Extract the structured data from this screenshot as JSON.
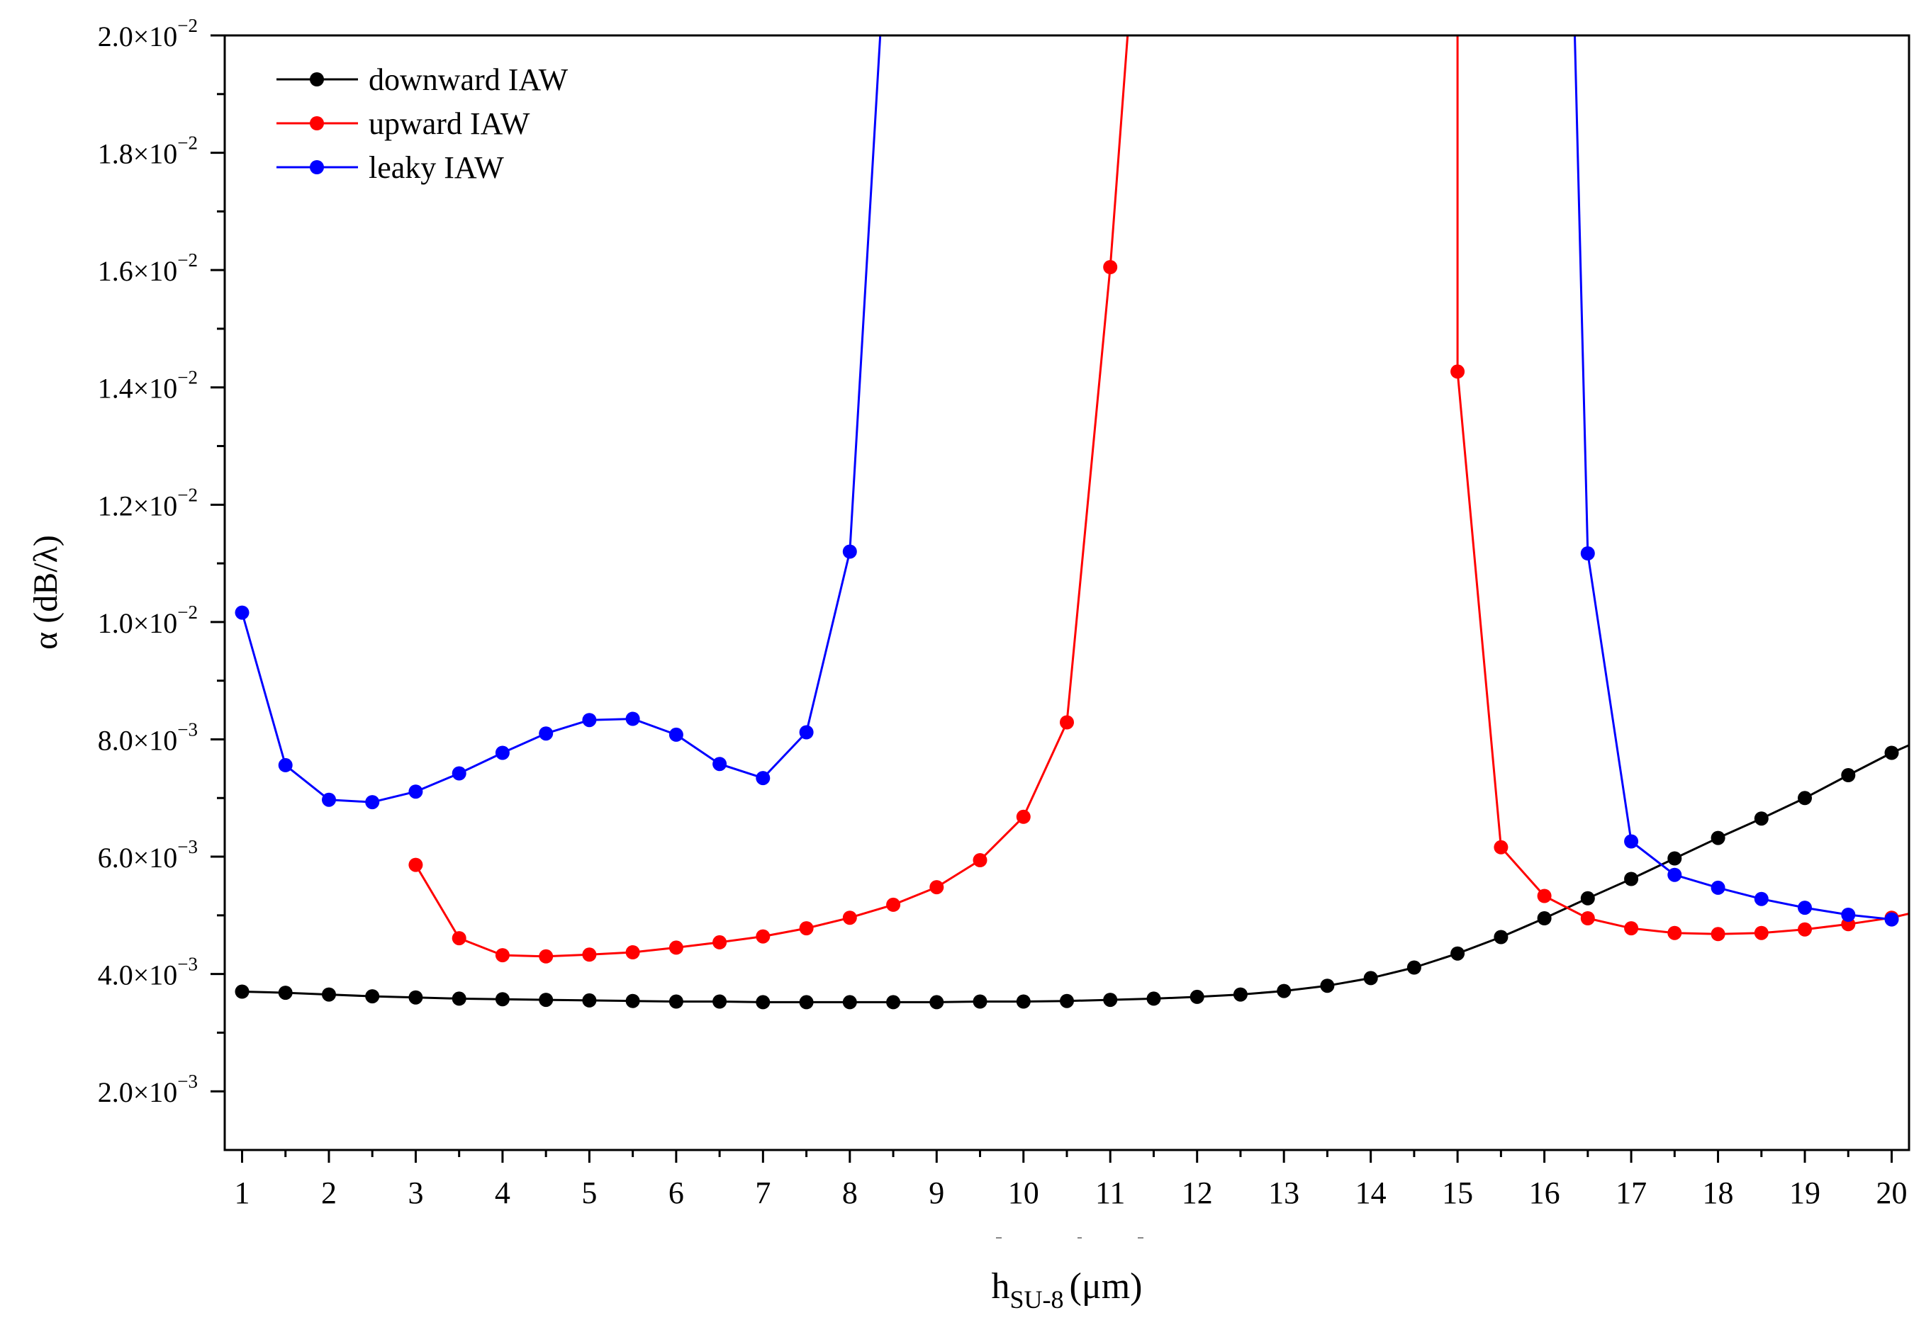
{
  "chart_data": {
    "type": "line",
    "title": "",
    "xlabel": {
      "main": "h",
      "sub": "SU-8",
      "unit": "(μm)"
    },
    "ylabel": "α (dB/λ)",
    "xlim": [
      0.8,
      20.2
    ],
    "ylim": [
      0.001,
      0.02
    ],
    "xticks": [
      "1",
      "2",
      "3",
      "4",
      "5",
      "6",
      "7",
      "8",
      "9",
      "10",
      "11",
      "12",
      "13",
      "14",
      "15",
      "16",
      "17",
      "18",
      "19",
      "20"
    ],
    "yticks": [
      {
        "value": 0.002,
        "mantissa": "2.0×10",
        "exp": "−3"
      },
      {
        "value": 0.004,
        "mantissa": "4.0×10",
        "exp": "−3"
      },
      {
        "value": 0.006,
        "mantissa": "6.0×10",
        "exp": "−3"
      },
      {
        "value": 0.008,
        "mantissa": "8.0×10",
        "exp": "−3"
      },
      {
        "value": 0.01,
        "mantissa": "1.0×10",
        "exp": "−2"
      },
      {
        "value": 0.012,
        "mantissa": "1.2×10",
        "exp": "−2"
      },
      {
        "value": 0.014,
        "mantissa": "1.4×10",
        "exp": "−2"
      },
      {
        "value": 0.016,
        "mantissa": "1.6×10",
        "exp": "−2"
      },
      {
        "value": 0.018,
        "mantissa": "1.8×10",
        "exp": "−2"
      },
      {
        "value": 0.02,
        "mantissa": "2.0×10",
        "exp": "−2"
      }
    ],
    "legend_position": "top-left",
    "series": [
      {
        "name": "downward IAW",
        "color": "#000000",
        "points": [
          [
            1,
            0.0037
          ],
          [
            1.5,
            0.00368
          ],
          [
            2,
            0.00365
          ],
          [
            2.5,
            0.00362
          ],
          [
            3,
            0.0036
          ],
          [
            3.5,
            0.00358
          ],
          [
            4,
            0.00357
          ],
          [
            4.5,
            0.00356
          ],
          [
            5,
            0.00355
          ],
          [
            5.5,
            0.00354
          ],
          [
            6,
            0.00353
          ],
          [
            6.5,
            0.00353
          ],
          [
            7,
            0.00352
          ],
          [
            7.5,
            0.00352
          ],
          [
            8,
            0.00352
          ],
          [
            8.5,
            0.00352
          ],
          [
            9,
            0.00352
          ],
          [
            9.5,
            0.00353
          ],
          [
            10,
            0.00353
          ],
          [
            10.5,
            0.00354
          ],
          [
            11,
            0.00356
          ],
          [
            11.5,
            0.00358
          ],
          [
            12,
            0.00361
          ],
          [
            12.5,
            0.00365
          ],
          [
            13,
            0.00371
          ],
          [
            13.5,
            0.0038
          ],
          [
            14,
            0.00393
          ],
          [
            14.5,
            0.00411
          ],
          [
            15,
            0.00435
          ],
          [
            15.5,
            0.00463
          ],
          [
            16,
            0.00495
          ],
          [
            16.5,
            0.00529
          ],
          [
            17,
            0.00562
          ],
          [
            17.5,
            0.00597
          ],
          [
            18,
            0.00632
          ],
          [
            18.5,
            0.00665
          ],
          [
            19,
            0.007
          ],
          [
            19.5,
            0.00739
          ],
          [
            20,
            0.00777
          ]
        ],
        "continuation": [
          [
            20.2,
            0.0079
          ]
        ]
      },
      {
        "name": "upward IAW",
        "color": "#ff0000",
        "segments": [
          {
            "points": [
              [
                3,
                0.00586
              ],
              [
                3.5,
                0.00461
              ],
              [
                4,
                0.00432
              ],
              [
                4.5,
                0.0043
              ],
              [
                5,
                0.00433
              ],
              [
                5.5,
                0.00437
              ],
              [
                6,
                0.00445
              ],
              [
                6.5,
                0.00454
              ],
              [
                7,
                0.00464
              ],
              [
                7.5,
                0.00478
              ],
              [
                8,
                0.00496
              ],
              [
                8.5,
                0.00518
              ],
              [
                9,
                0.00548
              ],
              [
                9.5,
                0.00594
              ],
              [
                10,
                0.00668
              ],
              [
                10.5,
                0.00829
              ],
              [
                11,
                0.01605
              ]
            ],
            "offscale_end": [
              11.2,
              0.02
            ]
          },
          {
            "offscale_start": [
              15.0,
              0.02
            ],
            "points": [
              [
                15,
                0.01427
              ],
              [
                15.5,
                0.00616
              ],
              [
                16,
                0.00533
              ],
              [
                16.5,
                0.00495
              ],
              [
                17,
                0.00478
              ],
              [
                17.5,
                0.0047
              ],
              [
                18,
                0.00468
              ],
              [
                18.5,
                0.0047
              ],
              [
                19,
                0.00476
              ],
              [
                19.5,
                0.00485
              ],
              [
                20,
                0.00496
              ]
            ],
            "continuation": [
              [
                20.2,
                0.00503
              ]
            ]
          }
        ]
      },
      {
        "name": "leaky IAW",
        "color": "#0000ff",
        "segments": [
          {
            "points": [
              [
                1,
                0.01016
              ],
              [
                1.5,
                0.00756
              ],
              [
                2,
                0.00697
              ],
              [
                2.5,
                0.00693
              ],
              [
                3,
                0.00711
              ],
              [
                3.5,
                0.00742
              ],
              [
                4,
                0.00777
              ],
              [
                4.5,
                0.0081
              ],
              [
                5,
                0.00833
              ],
              [
                5.5,
                0.00835
              ],
              [
                6,
                0.00808
              ],
              [
                6.5,
                0.00758
              ],
              [
                7,
                0.00734
              ],
              [
                7.5,
                0.00812
              ],
              [
                8,
                0.0112
              ]
            ],
            "offscale_end": [
              8.35,
              0.02
            ]
          },
          {
            "offscale_start": [
              16.35,
              0.02
            ],
            "points": [
              [
                16.5,
                0.01117
              ],
              [
                17,
                0.00626
              ],
              [
                17.5,
                0.00569
              ],
              [
                18,
                0.00547
              ],
              [
                18.5,
                0.00528
              ],
              [
                19,
                0.00513
              ],
              [
                19.5,
                0.00501
              ],
              [
                20,
                0.00493
              ]
            ]
          }
        ]
      }
    ],
    "decorations": [
      "stray-dash-mark-1",
      "stray-dash-mark-2",
      "stray-dash-mark-3"
    ]
  }
}
